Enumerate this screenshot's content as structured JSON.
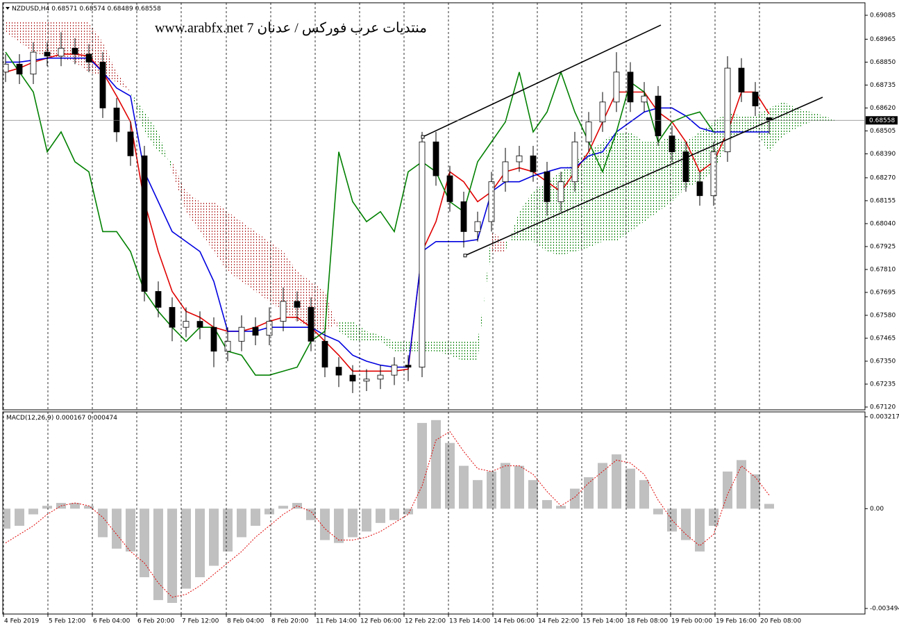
{
  "chart_data": [
    {
      "type": "candlestick",
      "symbol": "NZDUSD,H4",
      "annotation": "منتديات عرب فوركس / عدنان 7 www.arabfx.net",
      "xlim": [
        -0.4,
        61.85
      ],
      "xticks": [
        {
          "value": -0.15,
          "label": "4 Feb 2019"
        },
        {
          "value": 3.05,
          "label": "5 Feb 12:00"
        },
        {
          "value": 6.25,
          "label": "6 Feb 04:00"
        },
        {
          "value": 9.45,
          "label": "6 Feb 20:00"
        },
        {
          "value": 12.65,
          "label": "7 Feb 12:00"
        },
        {
          "value": 15.9,
          "label": "8 Feb 04:00"
        },
        {
          "value": 19.1,
          "label": "8 Feb 20:00"
        },
        {
          "value": 22.3,
          "label": "11 Feb 14:00"
        },
        {
          "value": 25.5,
          "label": "12 Feb 06:00"
        },
        {
          "value": 28.7,
          "label": "12 Feb 22:00"
        },
        {
          "value": 31.9,
          "label": "13 Feb 14:00"
        },
        {
          "value": 35.1,
          "label": "14 Feb 06:00"
        },
        {
          "value": 38.3,
          "label": "14 Feb 22:00"
        },
        {
          "value": 41.5,
          "label": "15 Feb 14:00"
        },
        {
          "value": 44.7,
          "label": "18 Feb 08:00"
        },
        {
          "value": 47.9,
          "label": "19 Feb 00:00"
        },
        {
          "value": 51.1,
          "label": "19 Feb 16:00"
        },
        {
          "value": 54.3,
          "label": "20 Feb 08:00"
        }
      ],
      "ylim": [
        0.6712,
        0.69085
      ],
      "yticks": [
        0.69085,
        0.68965,
        {
          "value": 0.6885,
          "label": "0.68850"
        },
        0.68735,
        {
          "value": 0.6862,
          "label": "0.68620"
        },
        0.68505,
        {
          "value": 0.6839,
          "label": "0.68390"
        },
        {
          "value": 0.6827,
          "label": "0.68270"
        },
        0.68155,
        {
          "value": 0.6804,
          "label": "0.68040"
        },
        0.67925,
        {
          "value": 0.6781,
          "label": "0.67810"
        },
        0.67695,
        {
          "value": 0.6758,
          "label": "0.67580"
        },
        0.67465,
        {
          "value": 0.6735,
          "label": "0.67350"
        },
        0.67235,
        {
          "value": 0.6712,
          "label": "0.67120"
        }
      ],
      "current_price": 0.68558,
      "open": [
        0.688,
        0.6884,
        0.6879,
        0.689,
        0.6888,
        0.6892,
        0.6889,
        0.6885,
        0.6862,
        0.685,
        0.6838,
        0.677,
        0.6762,
        0.6752,
        0.6755,
        0.6752,
        0.674,
        0.6745,
        0.6752,
        0.6748,
        0.6755,
        0.6765,
        0.6762,
        0.6745,
        0.6732,
        0.6728,
        0.6725,
        0.6726,
        0.6728,
        0.6733,
        0.6732,
        0.6845,
        0.6828,
        0.6815,
        0.68,
        0.6805,
        0.6825,
        0.6835,
        0.6838,
        0.683,
        0.6815,
        0.6825,
        0.6845,
        0.6855,
        0.6865,
        0.688,
        0.6865,
        0.6868,
        0.6848,
        0.684,
        0.6825,
        0.6818,
        0.684,
        0.6882,
        0.687,
        0.68571
      ],
      "high": [
        0.6889,
        0.6889,
        0.6895,
        0.6895,
        0.69,
        0.6897,
        0.6894,
        0.689,
        0.6867,
        0.6855,
        0.6843,
        0.6775,
        0.6767,
        0.6762,
        0.676,
        0.6757,
        0.6752,
        0.6758,
        0.6757,
        0.6762,
        0.6772,
        0.677,
        0.6767,
        0.675,
        0.6737,
        0.6733,
        0.6731,
        0.6733,
        0.6737,
        0.6738,
        0.685,
        0.685,
        0.6833,
        0.682,
        0.681,
        0.683,
        0.6842,
        0.6843,
        0.6843,
        0.6835,
        0.683,
        0.685,
        0.686,
        0.687,
        0.689,
        0.6885,
        0.6875,
        0.6873,
        0.6853,
        0.6845,
        0.683,
        0.6845,
        0.6888,
        0.6887,
        0.6875,
        0.68574
      ],
      "low": [
        0.6875,
        0.6874,
        0.6874,
        0.6883,
        0.6883,
        0.6884,
        0.688,
        0.6857,
        0.6845,
        0.6833,
        0.6765,
        0.6757,
        0.6745,
        0.6747,
        0.6746,
        0.6732,
        0.6735,
        0.674,
        0.6743,
        0.6743,
        0.675,
        0.6755,
        0.674,
        0.6727,
        0.6722,
        0.6719,
        0.672,
        0.6721,
        0.6723,
        0.6725,
        0.6727,
        0.6823,
        0.681,
        0.6792,
        0.6795,
        0.68,
        0.682,
        0.683,
        0.6825,
        0.6808,
        0.681,
        0.682,
        0.684,
        0.685,
        0.686,
        0.686,
        0.686,
        0.6843,
        0.6835,
        0.682,
        0.6813,
        0.6813,
        0.6835,
        0.6865,
        0.6858,
        0.68489
      ],
      "close": [
        0.6884,
        0.6879,
        0.689,
        0.6888,
        0.6892,
        0.6889,
        0.6885,
        0.6862,
        0.685,
        0.6838,
        0.677,
        0.6762,
        0.6752,
        0.6755,
        0.6752,
        0.674,
        0.6745,
        0.6752,
        0.6748,
        0.6755,
        0.6765,
        0.6762,
        0.6745,
        0.6732,
        0.6728,
        0.6725,
        0.6726,
        0.6728,
        0.6733,
        0.6732,
        0.6845,
        0.6828,
        0.6815,
        0.68,
        0.6805,
        0.6825,
        0.6835,
        0.6838,
        0.683,
        0.6815,
        0.6825,
        0.6845,
        0.6855,
        0.6865,
        0.688,
        0.6865,
        0.6868,
        0.6848,
        0.684,
        0.6825,
        0.6818,
        0.684,
        0.6882,
        0.687,
        0.6863,
        0.68558
      ],
      "candle_color": "#000000",
      "series": [
        {
          "color": "#e00000",
          "values": [
            0.688,
            0.6882,
            0.6885,
            0.6887,
            0.6889,
            0.6889,
            0.6888,
            0.688,
            0.6868,
            0.6855,
            0.6815,
            0.679,
            0.677,
            0.676,
            0.6757,
            0.6752,
            0.675,
            0.675,
            0.6752,
            0.6755,
            0.6757,
            0.6757,
            0.6752,
            0.6745,
            0.6738,
            0.673,
            0.673,
            0.673,
            0.673,
            0.6731,
            0.679,
            0.6805,
            0.683,
            0.6825,
            0.6815,
            0.682,
            0.683,
            0.6832,
            0.683,
            0.6825,
            0.682,
            0.683,
            0.684,
            0.6855,
            0.687,
            0.687,
            0.687,
            0.686,
            0.6855,
            0.6845,
            0.683,
            0.6835,
            0.685,
            0.687,
            0.687,
            0.6859,
            null,
            null,
            null,
            null,
            null
          ]
        },
        {
          "color": "#0000e0",
          "values": [
            0.6885,
            0.6885,
            0.6886,
            0.6887,
            0.6887,
            0.6887,
            0.6887,
            0.688,
            0.6872,
            0.6868,
            0.683,
            0.6815,
            0.68,
            0.6795,
            0.679,
            0.6775,
            0.675,
            0.675,
            0.675,
            0.6752,
            0.6752,
            0.6752,
            0.6752,
            0.6748,
            0.6745,
            0.6738,
            0.6735,
            0.6733,
            0.6732,
            0.6732,
            0.679,
            0.6795,
            0.6795,
            0.6795,
            0.6796,
            0.682,
            0.6825,
            0.6825,
            0.6828,
            0.683,
            0.6832,
            0.6832,
            0.6838,
            0.684,
            0.685,
            0.6855,
            0.686,
            0.6862,
            0.6862,
            0.6858,
            0.6852,
            0.685,
            0.685,
            0.685,
            0.685,
            0.685,
            null,
            null,
            null,
            null,
            null
          ]
        },
        {
          "color": "#008000",
          "values": [
            0.689,
            0.688,
            0.687,
            0.684,
            0.685,
            0.6835,
            0.683,
            0.68,
            0.68,
            0.679,
            0.677,
            0.676,
            0.6752,
            0.6745,
            0.6752,
            0.6752,
            0.674,
            0.6738,
            0.6728,
            0.6728,
            0.673,
            0.6732,
            0.6745,
            0.675,
            0.684,
            0.6815,
            0.6805,
            0.681,
            0.68,
            0.683,
            0.6835,
            0.683,
            0.6815,
            0.681,
            0.6835,
            0.6845,
            0.6855,
            0.688,
            0.685,
            0.686,
            0.688,
            0.686,
            0.6845,
            0.683,
            0.685,
            0.6875,
            0.687,
            0.6845,
            0.6855,
            0.6858,
            0.686,
            0.685,
            null,
            null,
            null,
            null,
            null,
            null,
            null,
            null,
            null
          ]
        }
      ],
      "cloud": {
        "up_color": "#008000",
        "down_color": "#b22222",
        "span_a": [
          0.69,
          0.6895,
          0.689,
          0.6888,
          0.6887,
          0.6885,
          0.688,
          0.6878,
          0.6875,
          0.687,
          0.686,
          0.685,
          0.683,
          0.681,
          0.68,
          0.679,
          0.678,
          0.6775,
          0.677,
          0.6765,
          0.676,
          0.6755,
          0.6752,
          0.675,
          0.6755,
          0.6755,
          0.675,
          0.6748,
          0.6745,
          0.6745,
          0.6745,
          0.6745,
          0.6745,
          0.6745,
          0.6745,
          0.679,
          0.679,
          0.681,
          0.682,
          0.6825,
          0.683,
          0.6835,
          0.684,
          0.6845,
          0.685,
          0.685,
          0.6845,
          0.6845,
          0.6848,
          0.6845,
          0.685,
          0.6855,
          0.686,
          0.6858,
          0.6858,
          0.6862,
          0.6865,
          0.6862,
          0.686,
          0.6858,
          0.6855
        ],
        "span_b": [
          0.6905,
          0.6905,
          0.6905,
          0.6905,
          0.6905,
          0.6905,
          0.6905,
          0.6895,
          0.688,
          0.687,
          0.685,
          0.684,
          0.6835,
          0.682,
          0.6815,
          0.6815,
          0.681,
          0.6805,
          0.68,
          0.6795,
          0.679,
          0.678,
          0.6775,
          0.677,
          0.675,
          0.6745,
          0.6745,
          0.6745,
          0.674,
          0.674,
          0.674,
          0.674,
          0.6738,
          0.6735,
          0.6735,
          0.68,
          0.6795,
          0.6795,
          0.6795,
          0.679,
          0.6788,
          0.679,
          0.6792,
          0.6795,
          0.6795,
          0.68,
          0.6805,
          0.681,
          0.6815,
          0.6822,
          0.6825,
          0.683,
          0.6845,
          0.685,
          0.685,
          0.684,
          0.6848,
          0.6852,
          0.6855,
          0.6855,
          0.6855
        ]
      },
      "trendlines": [
        {
          "x": [
            30.05,
            47.2
          ],
          "y": [
            0.68475,
            0.69036
          ]
        },
        {
          "x": [
            33.1,
            58.85
          ],
          "y": [
            0.6788,
            0.68674
          ]
        }
      ]
    },
    {
      "type": "macd",
      "name": "MACD(12,26,9)",
      "ylim": [
        -0.003494,
        0.003217
      ],
      "yticks": [
        0.003217,
        {
          "value": 0,
          "label": "0.00"
        },
        -0.003494
      ],
      "histogram_color": "#c0c0c0",
      "signal_color": "#e00000",
      "values": [
        -0.0007,
        -0.0006,
        -0.0002,
        0.0001,
        0.0002,
        0.0002,
        0.0001,
        -0.001,
        -0.0014,
        -0.0015,
        -0.0024,
        -0.0032,
        -0.0033,
        -0.0028,
        -0.0024,
        -0.002,
        -0.0015,
        -0.001,
        -0.0006,
        -0.0002,
        0.0001,
        0.0002,
        -0.0004,
        -0.0011,
        -0.0012,
        -0.001,
        -0.0008,
        -0.0005,
        -0.0004,
        -0.0002,
        0.003,
        0.0031,
        0.0023,
        0.0015,
        0.001,
        0.0013,
        0.0016,
        0.0015,
        0.001,
        0.0003,
        0.0001,
        0.0007,
        0.0011,
        0.0016,
        0.0019,
        0.0014,
        0.001,
        -0.0002,
        -0.0008,
        -0.0011,
        -0.0015,
        -0.0006,
        0.0013,
        0.0017,
        0.0012,
        0.000167
      ],
      "signal": [
        -0.0012,
        -0.0009,
        -0.0006,
        -0.0002,
        0.0001,
        0.0002,
        0.0001,
        -0.0003,
        -0.0009,
        -0.0015,
        -0.0019,
        -0.0026,
        -0.0031,
        -0.003,
        -0.0027,
        -0.0023,
        -0.0019,
        -0.0015,
        -0.001,
        -0.0006,
        -0.0002,
        0.0001,
        -0.0001,
        -0.0007,
        -0.0011,
        -0.0011,
        -0.001,
        -0.0008,
        -0.0005,
        -0.0002,
        0.0008,
        0.0024,
        0.0027,
        0.002,
        0.0014,
        0.0013,
        0.0015,
        0.0015,
        0.0012,
        0.0006,
        0.0001,
        0.0004,
        0.0009,
        0.0013,
        0.0017,
        0.0016,
        0.0012,
        0.0003,
        -0.0004,
        -0.0009,
        -0.0013,
        -0.0009,
        0.0005,
        0.0015,
        0.0011,
        0.000474
      ]
    }
  ]
}
